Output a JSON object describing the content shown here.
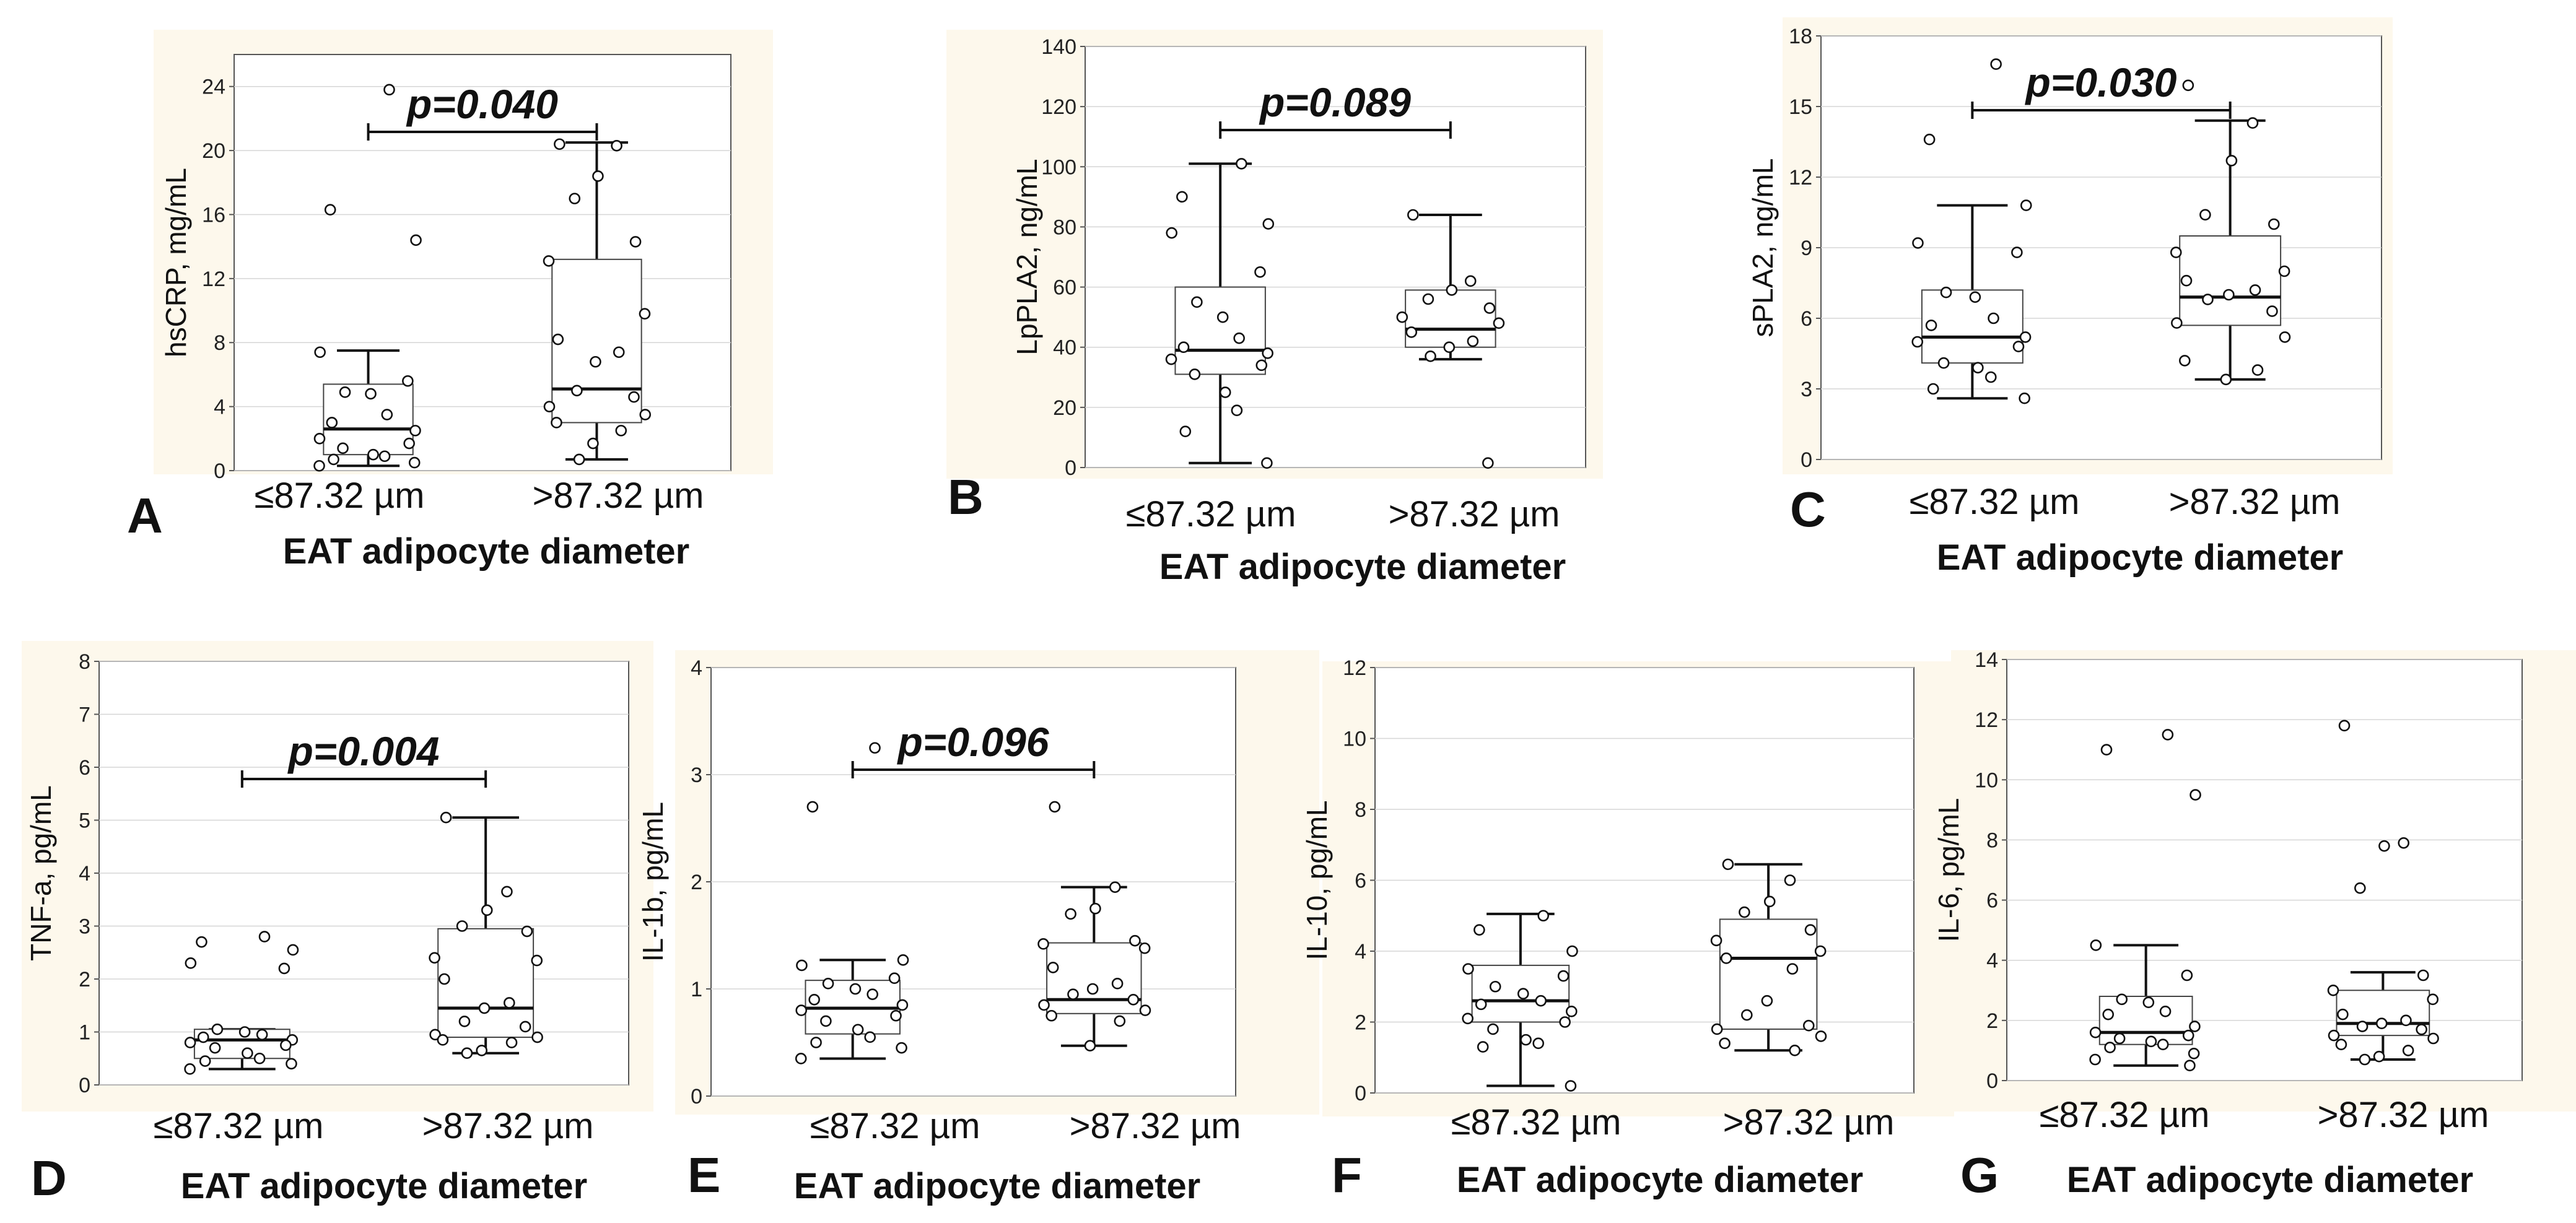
{
  "chart_data": [
    {
      "panel": "A",
      "type": "box",
      "ylabel": "hsCRP, mg/mL",
      "categories": [
        "≤87.32 µm",
        ">87.32 µm"
      ],
      "xlabel": "EAT adipocyte diameter",
      "ylim": [
        0,
        26
      ],
      "yticks": [
        0,
        4,
        8,
        12,
        16,
        20,
        24
      ],
      "pvalue": "p=0.040",
      "boxes": [
        {
          "whisker_low": 0.3,
          "q1": 1.0,
          "median": 2.6,
          "q3": 5.4,
          "whisker_high": 7.5
        },
        {
          "whisker_low": 0.7,
          "q1": 3.0,
          "median": 5.1,
          "q3": 13.2,
          "whisker_high": 20.5
        }
      ],
      "points": [
        [
          23.8,
          16.3,
          14.4,
          7.4,
          5.6,
          4.9,
          4.8,
          3.5,
          3.0,
          2.5,
          2.0,
          1.7,
          1.4,
          1.0,
          0.9,
          0.7,
          0.5,
          0.3
        ],
        [
          20.4,
          20.3,
          18.4,
          17.0,
          14.3,
          13.1,
          9.8,
          8.2,
          7.4,
          6.8,
          5.0,
          4.6,
          4.0,
          3.5,
          3.0,
          2.5,
          1.7,
          0.7
        ]
      ]
    },
    {
      "panel": "B",
      "type": "box",
      "ylabel": "LpPLA2, ng/mL",
      "categories": [
        "≤87.32 µm",
        ">87.32 µm"
      ],
      "xlabel": "EAT adipocyte diameter",
      "ylim": [
        0,
        140
      ],
      "yticks": [
        0,
        20,
        40,
        60,
        80,
        100,
        120,
        140
      ],
      "pvalue": "p=0.089",
      "boxes": [
        {
          "whisker_low": 1.5,
          "q1": 31,
          "median": 39,
          "q3": 60,
          "whisker_high": 101
        },
        {
          "whisker_low": 36,
          "q1": 40,
          "median": 46,
          "q3": 59,
          "whisker_high": 84
        }
      ],
      "points": [
        [
          101,
          90,
          81,
          78,
          65,
          55,
          50,
          43,
          40,
          38,
          36,
          34,
          31,
          25,
          19,
          12,
          1.5
        ],
        [
          84,
          62,
          59,
          56,
          53,
          50,
          48,
          45,
          42,
          40,
          37,
          1.5
        ]
      ]
    },
    {
      "panel": "C",
      "type": "box",
      "ylabel": "sPLA2, ng/mL",
      "categories": [
        "≤87.32 µm",
        ">87.32 µm"
      ],
      "xlabel": "EAT adipocyte diameter",
      "ylim": [
        0,
        18
      ],
      "yticks": [
        0,
        3,
        6,
        9,
        12,
        15,
        18
      ],
      "pvalue": "p=0.030",
      "boxes": [
        {
          "whisker_low": 2.6,
          "q1": 4.1,
          "median": 5.2,
          "q3": 7.2,
          "whisker_high": 10.8
        },
        {
          "whisker_low": 3.4,
          "q1": 5.7,
          "median": 6.9,
          "q3": 9.5,
          "whisker_high": 14.4
        }
      ],
      "points": [
        [
          16.8,
          13.6,
          10.8,
          9.2,
          8.8,
          7.1,
          6.9,
          6.0,
          5.7,
          5.2,
          5.0,
          4.8,
          4.1,
          3.9,
          3.5,
          3.0,
          2.6
        ],
        [
          15.9,
          14.3,
          12.7,
          10.4,
          10.0,
          8.8,
          8.0,
          7.6,
          7.2,
          7.0,
          6.8,
          6.3,
          5.8,
          5.2,
          4.2,
          3.8,
          3.4
        ]
      ]
    },
    {
      "panel": "D",
      "type": "box",
      "ylabel": "TNF-a, pg/mL",
      "categories": [
        "≤87.32 µm",
        ">87.32 µm"
      ],
      "xlabel": "EAT adipocyte diameter",
      "ylim": [
        0,
        8
      ],
      "yticks": [
        0,
        1,
        2,
        3,
        4,
        5,
        6,
        7,
        8
      ],
      "pvalue": "p=0.004",
      "boxes": [
        {
          "whisker_low": 0.3,
          "q1": 0.5,
          "median": 0.85,
          "q3": 1.05,
          "whisker_high": 1.05
        },
        {
          "whisker_low": 0.6,
          "q1": 0.9,
          "median": 1.45,
          "q3": 2.95,
          "whisker_high": 5.05
        }
      ],
      "points": [
        [
          2.8,
          2.7,
          2.55,
          2.3,
          2.2,
          1.05,
          1.0,
          0.95,
          0.9,
          0.85,
          0.8,
          0.75,
          0.7,
          0.6,
          0.5,
          0.45,
          0.4,
          0.3
        ],
        [
          5.05,
          3.65,
          3.3,
          3.0,
          2.9,
          2.4,
          2.35,
          2.0,
          1.55,
          1.45,
          1.2,
          1.1,
          0.95,
          0.9,
          0.85,
          0.8,
          0.65,
          0.6
        ]
      ]
    },
    {
      "panel": "E",
      "type": "box",
      "ylabel": "IL-1b, pg/mL",
      "categories": [
        "≤87.32 µm",
        ">87.32 µm"
      ],
      "xlabel": "EAT adipocyte diameter",
      "ylim": [
        0,
        4
      ],
      "yticks": [
        0,
        1,
        2,
        3,
        4
      ],
      "pvalue": "p=0.096",
      "boxes": [
        {
          "whisker_low": 0.35,
          "q1": 0.58,
          "median": 0.82,
          "q3": 1.08,
          "whisker_high": 1.27
        },
        {
          "whisker_low": 0.47,
          "q1": 0.77,
          "median": 0.9,
          "q3": 1.43,
          "whisker_high": 1.95
        }
      ],
      "points": [
        [
          3.25,
          2.7,
          1.27,
          1.22,
          1.1,
          1.05,
          1.0,
          0.95,
          0.9,
          0.85,
          0.8,
          0.75,
          0.7,
          0.62,
          0.55,
          0.5,
          0.45,
          0.35
        ],
        [
          2.7,
          1.95,
          1.75,
          1.7,
          1.45,
          1.42,
          1.38,
          1.2,
          1.05,
          1.0,
          0.95,
          0.9,
          0.85,
          0.8,
          0.75,
          0.7,
          0.47
        ]
      ]
    },
    {
      "panel": "F",
      "type": "box",
      "ylabel": "IL-10, pg/mL",
      "categories": [
        "≤87.32 µm",
        ">87.32 µm"
      ],
      "xlabel": "EAT adipocyte diameter",
      "ylim": [
        0,
        12
      ],
      "yticks": [
        0,
        2,
        4,
        6,
        8,
        10,
        12
      ],
      "pvalue": "",
      "boxes": [
        {
          "whisker_low": 0.2,
          "q1": 2.0,
          "median": 2.6,
          "q3": 3.6,
          "whisker_high": 5.05
        },
        {
          "whisker_low": 1.2,
          "q1": 1.8,
          "median": 3.8,
          "q3": 4.9,
          "whisker_high": 6.45
        }
      ],
      "points": [
        [
          5.0,
          4.6,
          4.0,
          3.5,
          3.3,
          3.0,
          2.8,
          2.6,
          2.5,
          2.3,
          2.1,
          2.0,
          1.8,
          1.5,
          1.4,
          1.3,
          0.2
        ],
        [
          6.45,
          6.0,
          5.4,
          5.1,
          4.6,
          4.3,
          4.0,
          3.8,
          3.5,
          2.6,
          2.2,
          1.9,
          1.8,
          1.6,
          1.4,
          1.2
        ]
      ]
    },
    {
      "panel": "G",
      "type": "box",
      "ylabel": "IL-6, pg/mL",
      "categories": [
        "≤87.32 µm",
        ">87.32 µm"
      ],
      "xlabel": "EAT adipocyte diameter",
      "ylim": [
        0,
        14
      ],
      "yticks": [
        0,
        2,
        4,
        6,
        8,
        10,
        12,
        14
      ],
      "pvalue": "",
      "boxes": [
        {
          "whisker_low": 0.5,
          "q1": 1.2,
          "median": 1.6,
          "q3": 2.8,
          "whisker_high": 4.5
        },
        {
          "whisker_low": 0.7,
          "q1": 1.5,
          "median": 1.9,
          "q3": 3.0,
          "whisker_high": 3.6
        }
      ],
      "points": [
        [
          11.5,
          11.0,
          9.5,
          4.5,
          3.5,
          2.7,
          2.6,
          2.3,
          2.2,
          1.8,
          1.6,
          1.5,
          1.4,
          1.3,
          1.2,
          1.1,
          0.9,
          0.7,
          0.5
        ],
        [
          11.8,
          7.9,
          7.8,
          6.4,
          3.5,
          3.0,
          2.7,
          2.2,
          2.0,
          1.9,
          1.8,
          1.7,
          1.5,
          1.4,
          1.2,
          1.0,
          0.8,
          0.7
        ]
      ]
    }
  ]
}
